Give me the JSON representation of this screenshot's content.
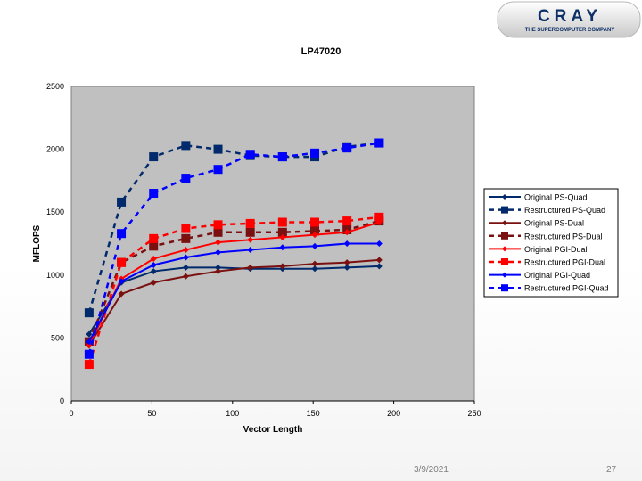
{
  "logo": {
    "brand": "CRAY",
    "tagline": "THE SUPERCOMPUTER COMPANY"
  },
  "footer": {
    "date": "3/9/2021",
    "page": "27"
  },
  "colors": {
    "plot_bg": "#c0c0c0",
    "dark_blue": "#002a6c",
    "dark_red": "#7a1010",
    "red": "#ff0000",
    "blue": "#0000ff"
  },
  "chart_data": {
    "type": "line",
    "title": "LP47020",
    "xlabel": "Vector Length",
    "ylabel": "MFLOPS",
    "xlim": [
      0,
      250
    ],
    "ylim": [
      0,
      2500
    ],
    "xticks": [
      0,
      50,
      100,
      150,
      200,
      250
    ],
    "yticks": [
      0,
      500,
      1000,
      1500,
      2000,
      2500
    ],
    "grid": false,
    "legend_position": "right",
    "x": [
      11,
      31,
      51,
      71,
      91,
      111,
      131,
      151,
      171,
      191
    ],
    "series": [
      {
        "name": "Original PS-Quad",
        "color": "#002a6c",
        "dashed": false,
        "marker": "diamond",
        "values": [
          530,
          940,
          1030,
          1060,
          1060,
          1050,
          1050,
          1050,
          1060,
          1070
        ]
      },
      {
        "name": "Restructured PS-Quad",
        "color": "#002a6c",
        "dashed": true,
        "marker": "square",
        "values": [
          700,
          1580,
          1940,
          2030,
          2000,
          1950,
          1940,
          1940,
          2020,
          2050
        ]
      },
      {
        "name": "Original PS-Dual",
        "color": "#7a1010",
        "dashed": false,
        "marker": "diamond",
        "values": [
          440,
          850,
          940,
          990,
          1030,
          1060,
          1070,
          1090,
          1100,
          1120
        ]
      },
      {
        "name": "Restructured PS-Dual",
        "color": "#7a1010",
        "dashed": true,
        "marker": "square",
        "values": [
          470,
          1100,
          1230,
          1290,
          1340,
          1340,
          1340,
          1350,
          1360,
          1430
        ]
      },
      {
        "name": "Original PGI-Dual",
        "color": "#ff0000",
        "dashed": false,
        "marker": "diamond",
        "values": [
          440,
          970,
          1130,
          1200,
          1260,
          1280,
          1300,
          1320,
          1340,
          1420
        ]
      },
      {
        "name": "Restructured PGI-Dual",
        "color": "#ff0000",
        "dashed": true,
        "marker": "square",
        "values": [
          290,
          1100,
          1290,
          1370,
          1400,
          1410,
          1420,
          1420,
          1430,
          1460
        ]
      },
      {
        "name": "Original PGI-Quad",
        "color": "#0000ff",
        "dashed": false,
        "marker": "diamond",
        "values": [
          470,
          950,
          1080,
          1140,
          1180,
          1200,
          1220,
          1230,
          1250,
          1250
        ]
      },
      {
        "name": "Restructured PGI-Quad",
        "color": "#0000ff",
        "dashed": true,
        "marker": "square",
        "values": [
          370,
          1330,
          1650,
          1770,
          1840,
          1960,
          1940,
          1970,
          2010,
          2050
        ]
      }
    ]
  }
}
